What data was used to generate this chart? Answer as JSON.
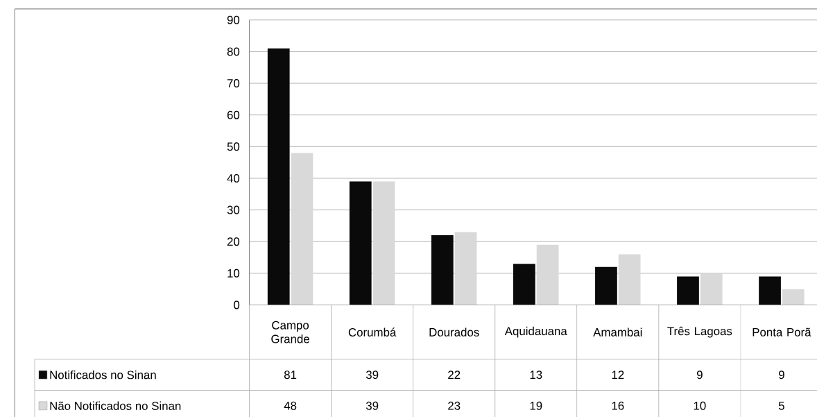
{
  "chart_data": {
    "type": "bar",
    "categories": [
      "Campo Grande",
      "Corumbá",
      "Dourados",
      "Aquidauana",
      "Amambai",
      "Três Lagoas",
      "Ponta Porã"
    ],
    "series": [
      {
        "name": "Notificados no Sinan",
        "color": "#0a0a0a",
        "values": [
          81,
          39,
          22,
          13,
          12,
          9,
          9
        ]
      },
      {
        "name": "Não Notificados no Sinan",
        "color": "#d9d9d9",
        "values": [
          48,
          39,
          23,
          19,
          16,
          10,
          5
        ]
      }
    ],
    "ylim": [
      0,
      90
    ],
    "yticks": [
      0,
      10,
      20,
      30,
      40,
      50,
      60,
      70,
      80,
      90
    ],
    "grid": "y",
    "legend": "bottom",
    "data_labels": true
  }
}
